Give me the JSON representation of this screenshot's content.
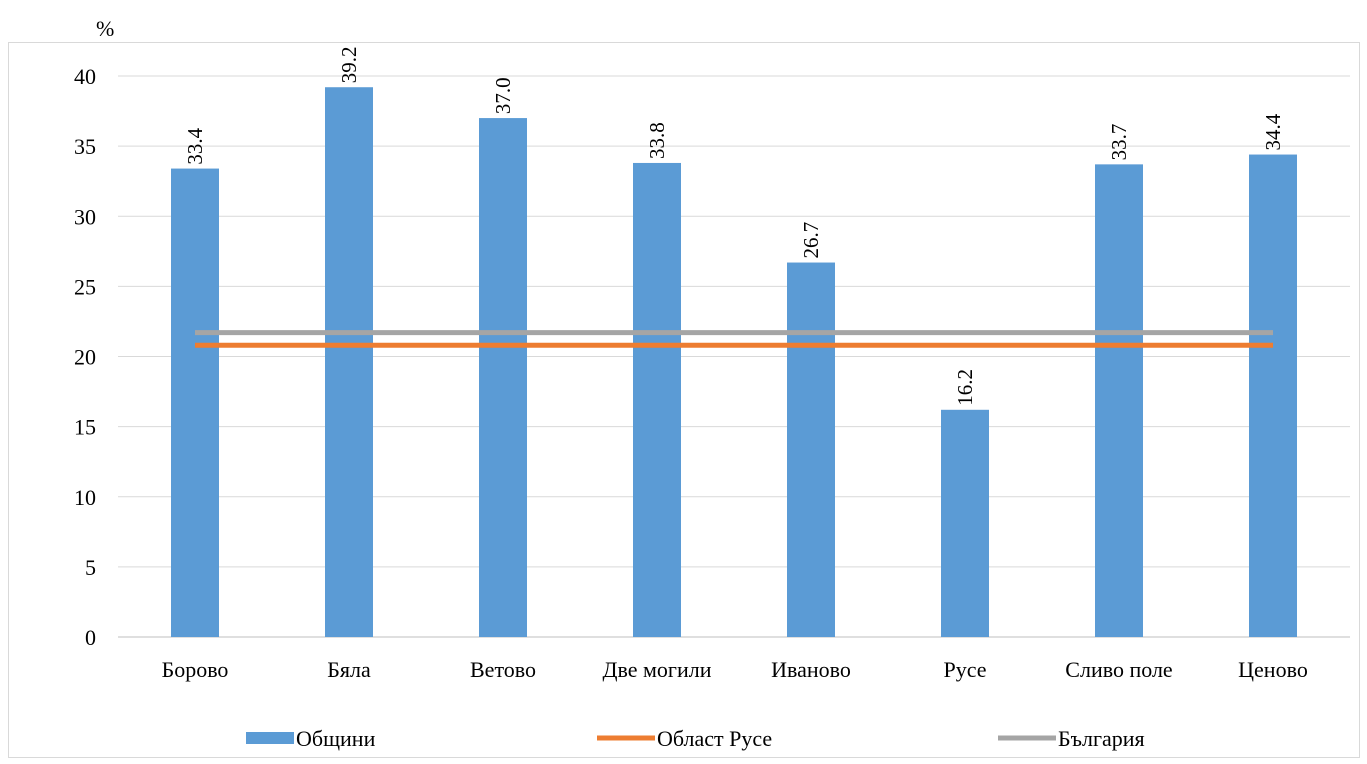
{
  "page": {
    "title": ""
  },
  "chart_data": {
    "type": "bar",
    "title": "",
    "ylabel": "%",
    "xlabel": "",
    "ylim": [
      0,
      40
    ],
    "yticks": [
      0,
      5,
      10,
      15,
      20,
      25,
      30,
      35,
      40
    ],
    "grid": true,
    "legend_position": "bottom",
    "categories": [
      "Борово",
      "Бяла",
      "Ветово",
      "Две могили",
      "Иваново",
      "Русе",
      "Сливо поле",
      "Ценово"
    ],
    "series": [
      {
        "name": "Общини",
        "type": "bar",
        "color": "#5b9bd5",
        "values": [
          33.4,
          39.2,
          37.0,
          33.8,
          26.7,
          16.2,
          33.7,
          34.4
        ],
        "labels": [
          "33.4",
          "39.2",
          "37.0",
          "33.8",
          "26.7",
          "16.2",
          "33.7",
          "34.4"
        ]
      },
      {
        "name": "Област Русе",
        "type": "line",
        "color": "#ed7d31",
        "value": 20.8
      },
      {
        "name": "България",
        "type": "line",
        "color": "#a5a5a5",
        "value": 21.7
      }
    ]
  }
}
